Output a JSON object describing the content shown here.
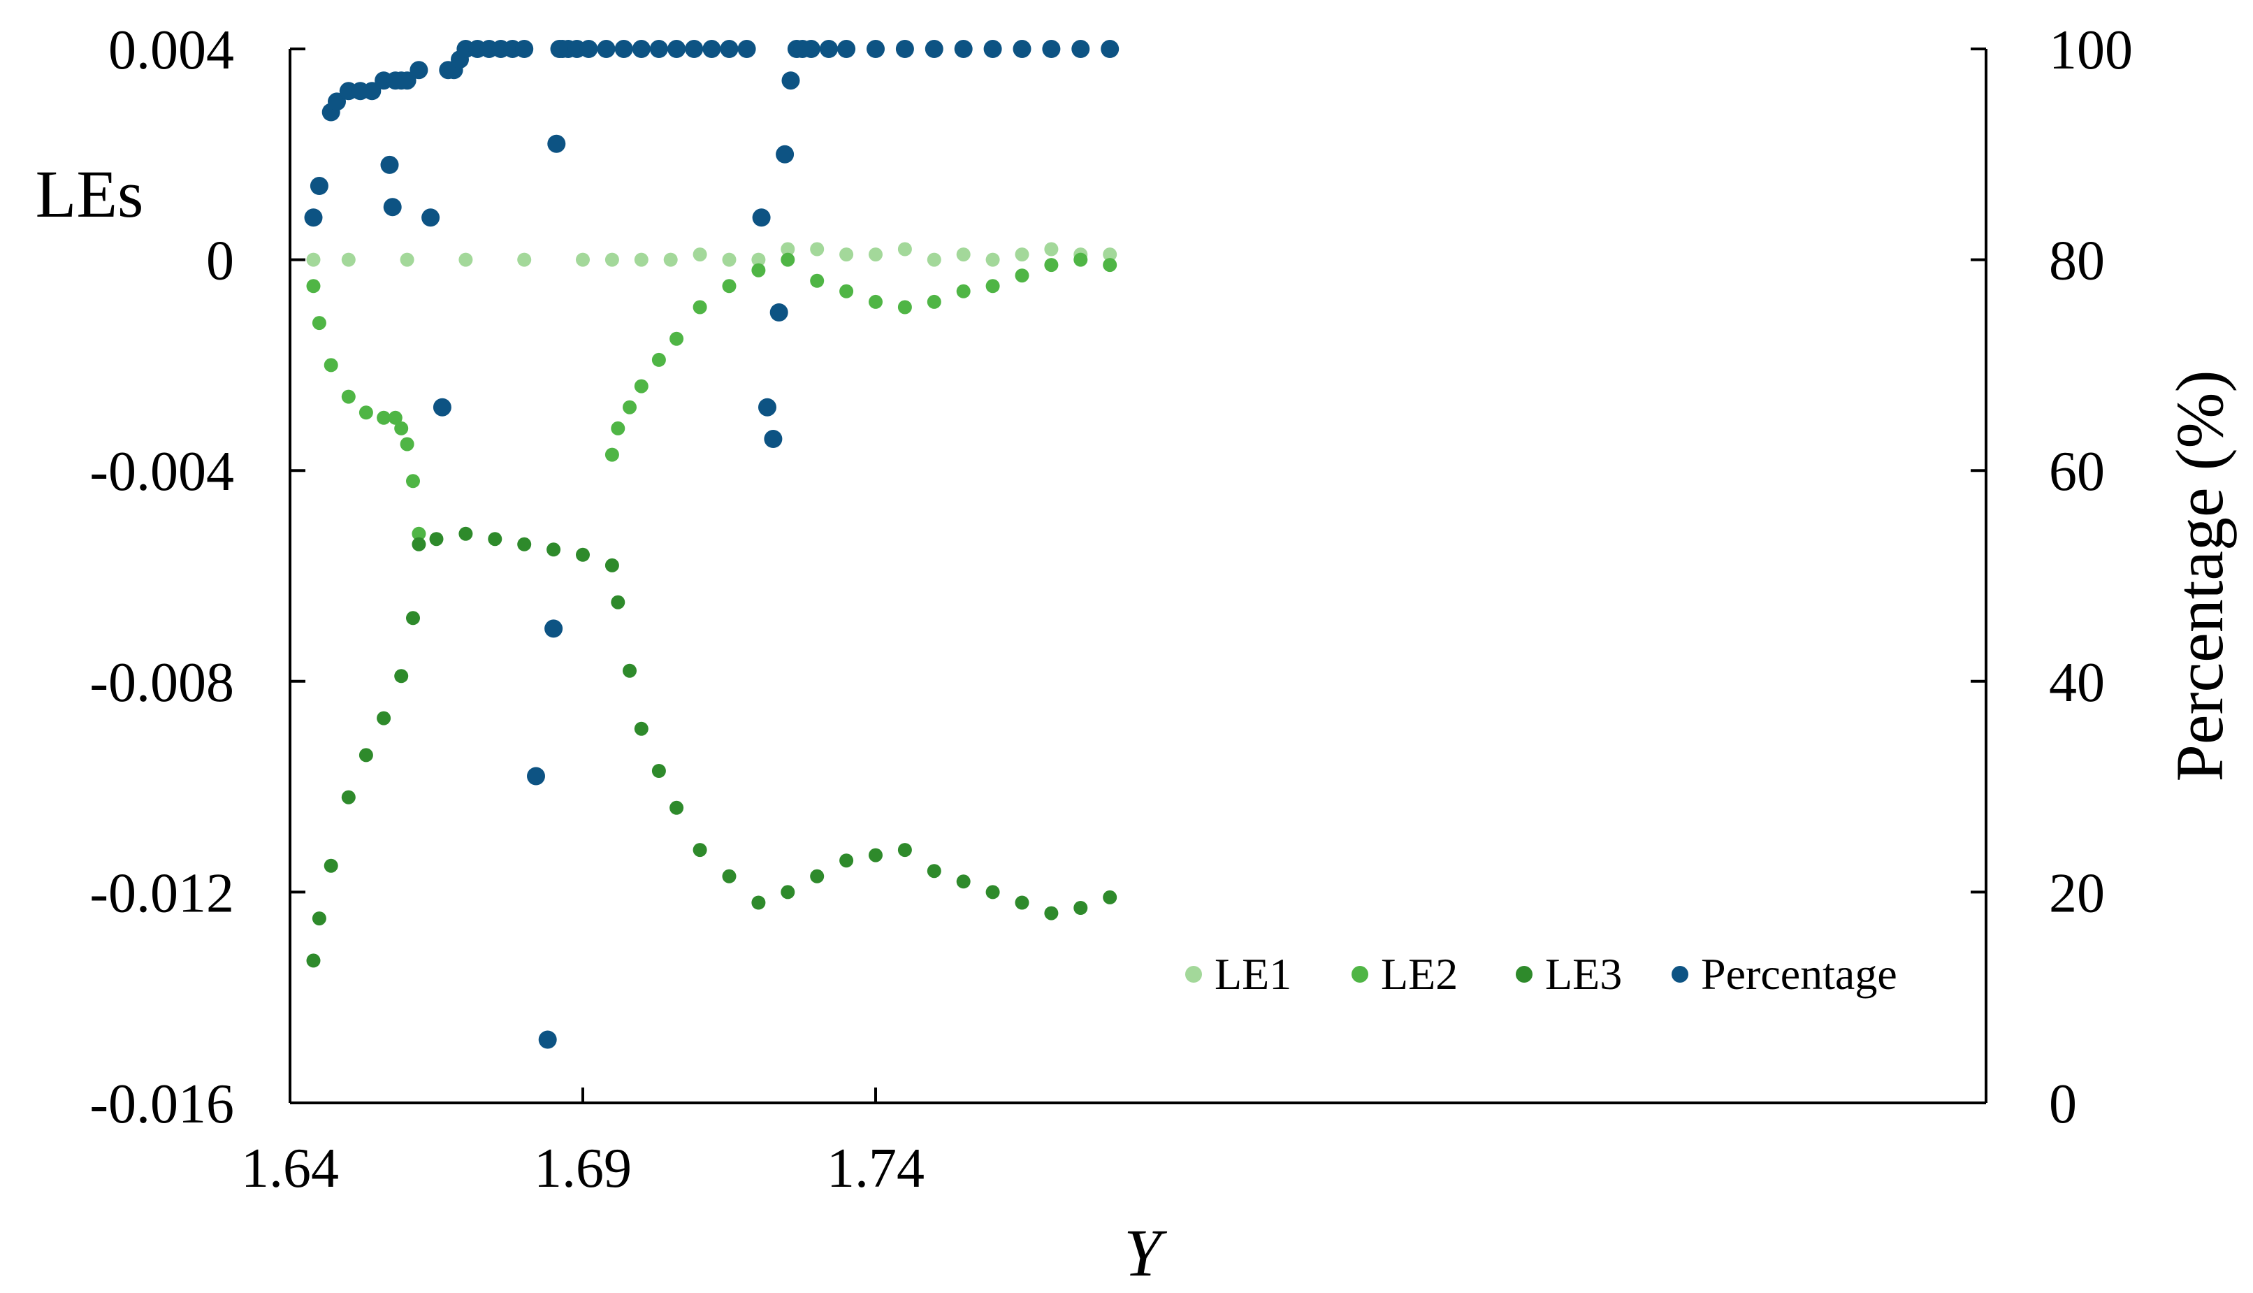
{
  "chart_data": {
    "type": "scatter",
    "xlabel": "Y",
    "ylabel_left": "LEs",
    "ylabel_right": "Percentage (%)",
    "xlim": [
      1.64,
      1.785
    ],
    "ylim_left": [
      -0.016,
      0.004
    ],
    "ylim_right": [
      0,
      100
    ],
    "x_ticks": [
      1.64,
      1.69,
      1.74
    ],
    "x_tick_labels": [
      "1.64",
      "1.69",
      "1.74"
    ],
    "y_left_ticks": [
      0.004,
      0,
      -0.004,
      -0.008,
      -0.012,
      -0.016
    ],
    "y_left_tick_labels": [
      "0.004",
      "0",
      "-0.004",
      "-0.008",
      "-0.012",
      "-0.016"
    ],
    "y_right_ticks": [
      100,
      80,
      60,
      40,
      20,
      0
    ],
    "y_right_tick_labels": [
      "100",
      "80",
      "60",
      "40",
      "20",
      "0"
    ],
    "grid": false,
    "legend_position": "bottom-right",
    "legend_entries": [
      "LE1",
      "LE2",
      "LE3",
      "Percentage"
    ],
    "colors": {
      "LE1": "#a3d89a",
      "LE2": "#4fb545",
      "LE3": "#2e8a2b",
      "Percentage": "#0d5383",
      "axis": "#000000"
    },
    "series": [
      {
        "name": "LE1",
        "axis": "left",
        "x": [
          1.644,
          1.65,
          1.66,
          1.67,
          1.68,
          1.69,
          1.695,
          1.7,
          1.705,
          1.71,
          1.715,
          1.72,
          1.725,
          1.73,
          1.735,
          1.74,
          1.745,
          1.75,
          1.755,
          1.76,
          1.765,
          1.77,
          1.775,
          1.78
        ],
        "y": [
          0,
          0,
          0,
          0,
          0,
          0,
          0,
          0,
          0,
          0.0001,
          0,
          0,
          0.0002,
          0.0002,
          0.0001,
          0.0001,
          0.0002,
          0,
          0.0001,
          0,
          0.0001,
          0.0002,
          0.0001,
          0.0001
        ]
      },
      {
        "name": "LE2",
        "axis": "left",
        "x": [
          1.644,
          1.645,
          1.647,
          1.65,
          1.653,
          1.656,
          1.658,
          1.659,
          1.66,
          1.661,
          1.662,
          1.695,
          1.696,
          1.698,
          1.7,
          1.703,
          1.706,
          1.71,
          1.715,
          1.72,
          1.725,
          1.73,
          1.735,
          1.74,
          1.745,
          1.75,
          1.755,
          1.76,
          1.765,
          1.77,
          1.775,
          1.78
        ],
        "y": [
          -0.0005,
          -0.0012,
          -0.002,
          -0.0026,
          -0.0029,
          -0.003,
          -0.003,
          -0.0032,
          -0.0035,
          -0.0042,
          -0.0052,
          -0.0037,
          -0.0032,
          -0.0028,
          -0.0024,
          -0.0019,
          -0.0015,
          -0.0009,
          -0.0005,
          -0.0002,
          0,
          -0.0004,
          -0.0006,
          -0.0008,
          -0.0009,
          -0.0008,
          -0.0006,
          -0.0005,
          -0.0003,
          -0.0001,
          0,
          -0.0001
        ]
      },
      {
        "name": "LE3",
        "axis": "left",
        "x": [
          1.644,
          1.645,
          1.647,
          1.65,
          1.653,
          1.656,
          1.659,
          1.661,
          1.662,
          1.665,
          1.67,
          1.675,
          1.68,
          1.685,
          1.69,
          1.695,
          1.696,
          1.698,
          1.7,
          1.703,
          1.706,
          1.71,
          1.715,
          1.72,
          1.725,
          1.73,
          1.735,
          1.74,
          1.745,
          1.75,
          1.755,
          1.76,
          1.765,
          1.77,
          1.775,
          1.78
        ],
        "y": [
          -0.0133,
          -0.0125,
          -0.0115,
          -0.0102,
          -0.0094,
          -0.0087,
          -0.0079,
          -0.0068,
          -0.0054,
          -0.0053,
          -0.0052,
          -0.0053,
          -0.0054,
          -0.0055,
          -0.0056,
          -0.0058,
          -0.0065,
          -0.0078,
          -0.0089,
          -0.0097,
          -0.0104,
          -0.0112,
          -0.0117,
          -0.0122,
          -0.012,
          -0.0117,
          -0.0114,
          -0.0113,
          -0.0112,
          -0.0116,
          -0.0118,
          -0.012,
          -0.0122,
          -0.0124,
          -0.0123,
          -0.0121
        ]
      },
      {
        "name": "Percentage",
        "axis": "right",
        "x": [
          1.644,
          1.645,
          1.647,
          1.648,
          1.65,
          1.652,
          1.654,
          1.656,
          1.657,
          1.6575,
          1.658,
          1.659,
          1.66,
          1.662,
          1.664,
          1.666,
          1.667,
          1.668,
          1.669,
          1.67,
          1.672,
          1.674,
          1.676,
          1.678,
          1.68,
          1.682,
          1.684,
          1.685,
          1.6855,
          1.686,
          1.6865,
          1.6875,
          1.689,
          1.691,
          1.694,
          1.697,
          1.7,
          1.703,
          1.706,
          1.709,
          1.712,
          1.715,
          1.718,
          1.7205,
          1.7215,
          1.7225,
          1.7235,
          1.7245,
          1.7255,
          1.7265,
          1.7275,
          1.729,
          1.732,
          1.735,
          1.74,
          1.745,
          1.75,
          1.755,
          1.76,
          1.765,
          1.77,
          1.775,
          1.78
        ],
        "y": [
          84,
          87,
          94,
          95,
          96,
          96,
          96,
          97,
          89,
          85,
          97,
          97,
          97,
          98,
          84,
          66,
          98,
          98,
          99,
          100,
          100,
          100,
          100,
          100,
          100,
          31,
          6,
          45,
          91,
          100,
          100,
          100,
          100,
          100,
          100,
          100,
          100,
          100,
          100,
          100,
          100,
          100,
          100,
          84,
          66,
          63,
          75,
          90,
          97,
          100,
          100,
          100,
          100,
          100,
          100,
          100,
          100,
          100,
          100,
          100,
          100,
          100,
          100
        ]
      }
    ]
  }
}
